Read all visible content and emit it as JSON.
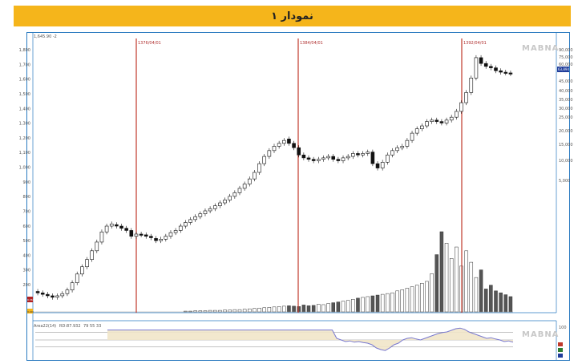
{
  "title": "نمودار ۱",
  "price_header": "1,645.90 -2",
  "indicator_header": "Area22(14)",
  "indicator_value": "RD:87.932",
  "indicator_levels_text": "79  55  33",
  "watermark": "MABNA",
  "left_badge_red": "0.363",
  "left_badge_yellow": "3.000",
  "right_badge_blue": "63,894",
  "osc_right_top": "100",
  "colors": {
    "bull": "#ffffff",
    "bear": "#111111",
    "vline": "#c0392b",
    "area": "#f1e5c9",
    "osc_line": "#7878d0"
  },
  "chart_data": {
    "type": "candlestick",
    "y_left_ticks": [
      "1,800",
      "1,700",
      "1,600",
      "1,500",
      "1,400",
      "1,300",
      "1,200",
      "1,100",
      "1,000",
      "900",
      "800",
      "700",
      "600",
      "500",
      "400",
      "300",
      "200"
    ],
    "y_right_ticks": [
      "90,000",
      "75,000",
      "60,000",
      "45,000",
      "40,000",
      "35,000",
      "30,000",
      "25,000",
      "20,000",
      "15,000",
      "10,000",
      "5,000"
    ],
    "vertical_markers": [
      "1376/04/01",
      "1384/04/01",
      "1392/04/01"
    ],
    "ylim": [
      100,
      1900
    ],
    "candles": [
      [
        180,
        170
      ],
      [
        170,
        160
      ],
      [
        160,
        150
      ],
      [
        150,
        140
      ],
      [
        140,
        150
      ],
      [
        150,
        165
      ],
      [
        165,
        190
      ],
      [
        190,
        240
      ],
      [
        240,
        300
      ],
      [
        300,
        350
      ],
      [
        350,
        400
      ],
      [
        400,
        460
      ],
      [
        460,
        520
      ],
      [
        520,
        590
      ],
      [
        590,
        630
      ],
      [
        630,
        645
      ],
      [
        640,
        630
      ],
      [
        630,
        615
      ],
      [
        615,
        600
      ],
      [
        600,
        560
      ],
      [
        560,
        575
      ],
      [
        575,
        570
      ],
      [
        570,
        560
      ],
      [
        560,
        550
      ],
      [
        545,
        530
      ],
      [
        530,
        540
      ],
      [
        540,
        560
      ],
      [
        560,
        585
      ],
      [
        585,
        600
      ],
      [
        600,
        630
      ],
      [
        630,
        655
      ],
      [
        655,
        675
      ],
      [
        675,
        695
      ],
      [
        695,
        715
      ],
      [
        715,
        735
      ],
      [
        735,
        750
      ],
      [
        750,
        770
      ],
      [
        770,
        790
      ],
      [
        790,
        810
      ],
      [
        810,
        835
      ],
      [
        835,
        860
      ],
      [
        860,
        890
      ],
      [
        890,
        920
      ],
      [
        920,
        955
      ],
      [
        955,
        1000
      ],
      [
        1000,
        1060
      ],
      [
        1060,
        1110
      ],
      [
        1110,
        1150
      ],
      [
        1150,
        1180
      ],
      [
        1180,
        1200
      ],
      [
        1200,
        1220
      ],
      [
        1230,
        1200
      ],
      [
        1200,
        1170
      ],
      [
        1170,
        1120
      ],
      [
        1120,
        1100
      ],
      [
        1100,
        1090
      ],
      [
        1090,
        1080
      ],
      [
        1080,
        1090
      ],
      [
        1090,
        1100
      ],
      [
        1100,
        1110
      ],
      [
        1110,
        1090
      ],
      [
        1090,
        1080
      ],
      [
        1080,
        1100
      ],
      [
        1100,
        1110
      ],
      [
        1110,
        1130
      ],
      [
        1130,
        1120
      ],
      [
        1120,
        1130
      ],
      [
        1130,
        1140
      ],
      [
        1140,
        1060
      ],
      [
        1060,
        1030
      ],
      [
        1030,
        1070
      ],
      [
        1070,
        1120
      ],
      [
        1120,
        1150
      ],
      [
        1150,
        1170
      ],
      [
        1170,
        1180
      ],
      [
        1180,
        1220
      ],
      [
        1220,
        1270
      ],
      [
        1270,
        1300
      ],
      [
        1300,
        1320
      ],
      [
        1320,
        1350
      ],
      [
        1350,
        1360
      ],
      [
        1360,
        1350
      ],
      [
        1350,
        1340
      ],
      [
        1340,
        1360
      ],
      [
        1360,
        1380
      ],
      [
        1380,
        1420
      ],
      [
        1420,
        1480
      ],
      [
        1480,
        1550
      ],
      [
        1550,
        1650
      ],
      [
        1650,
        1790
      ],
      [
        1790,
        1750
      ],
      [
        1750,
        1730
      ],
      [
        1730,
        1720
      ],
      [
        1720,
        1700
      ],
      [
        1700,
        1690
      ],
      [
        1690,
        1685
      ],
      [
        1685,
        1680
      ]
    ],
    "volume": [
      0,
      0,
      0,
      0,
      0,
      0,
      0,
      0,
      0,
      0,
      0,
      0,
      0,
      0,
      0,
      0,
      0,
      0,
      0,
      0,
      0,
      0,
      0,
      0,
      0,
      0,
      0,
      0,
      0,
      0,
      2,
      2,
      3,
      3,
      3,
      4,
      4,
      4,
      5,
      5,
      6,
      6,
      7,
      8,
      9,
      10,
      11,
      12,
      13,
      14,
      15,
      16,
      15,
      14,
      18,
      16,
      17,
      20,
      19,
      22,
      24,
      26,
      28,
      30,
      33,
      36,
      38,
      40,
      42,
      44,
      46,
      48,
      50,
      55,
      58,
      62,
      66,
      70,
      75,
      80,
      100,
      150,
      210,
      180,
      140,
      170,
      120,
      160,
      130,
      90,
      110,
      60,
      70,
      55,
      50,
      45,
      40
    ],
    "oscillator": [
      86,
      86,
      86,
      86,
      86,
      86,
      86,
      86,
      86,
      86,
      86,
      86,
      86,
      86,
      86,
      86,
      86,
      86,
      86,
      86,
      86,
      86,
      86,
      86,
      86,
      86,
      86,
      86,
      86,
      86,
      86,
      86,
      86,
      86,
      86,
      86,
      86,
      86,
      86,
      86,
      86,
      86,
      86,
      86,
      86,
      86,
      86,
      86,
      86,
      86,
      86,
      86,
      60,
      55,
      50,
      52,
      48,
      50,
      47,
      45,
      40,
      30,
      25,
      22,
      30,
      40,
      45,
      55,
      60,
      62,
      58,
      55,
      60,
      65,
      70,
      75,
      78,
      80,
      85,
      90,
      92,
      88,
      80,
      75,
      70,
      65,
      60,
      62,
      58,
      55,
      50,
      52,
      48
    ]
  }
}
